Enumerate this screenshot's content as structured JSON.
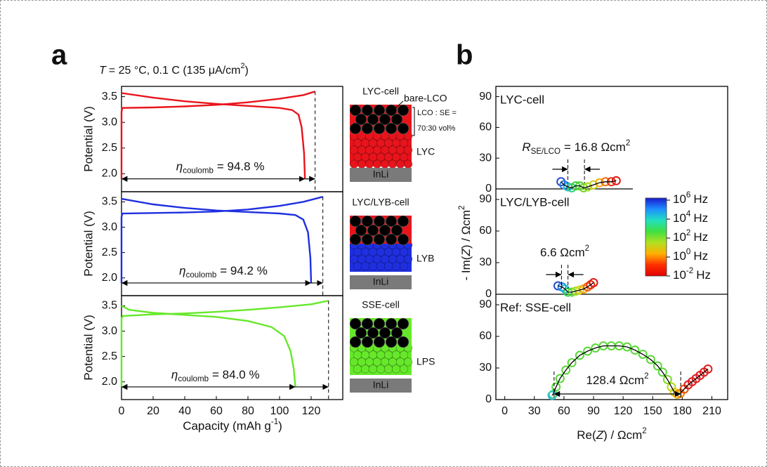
{
  "panel_a": {
    "letter": "a",
    "condition": {
      "symbol": "T",
      "text": "= 25 °C, 0.1 C (135 μA/cm",
      "sup": "2",
      "end": ")"
    },
    "x_label": {
      "text": "Capacity (mAh g",
      "sup": "-1",
      "end": ")"
    }
  },
  "cells": [
    {
      "name": "LYC-cell",
      "cathode_label": "bare-LCO",
      "ratio": [
        "LCO : SE =",
        "70:30 vol%"
      ],
      "layer": "LYC",
      "anode": "InLi"
    },
    {
      "name": "LYC/LYB-cell",
      "layer": "LYB",
      "anode": "InLi"
    },
    {
      "name": "SSE-cell",
      "layer": "LPS",
      "anode": "InLi"
    }
  ],
  "panel_b": {
    "letter": "b",
    "y_label": {
      "a": "- Im(",
      "z": "Z",
      "b": ") / Ωcm",
      "sup": "2"
    },
    "x_label": {
      "a": "Re(",
      "z": "Z",
      "b": ") / Ωcm",
      "sup": "2"
    }
  },
  "colorbar": {
    "colors": [
      "#1a1ad0",
      "#1e90ff",
      "#20e0c0",
      "#40e040",
      "#b0e020",
      "#ffb000",
      "#ff3000",
      "#e00000"
    ],
    "ticks": [
      {
        "base": "10",
        "exp": "6",
        "unit": "Hz"
      },
      {
        "base": "10",
        "exp": "4",
        "unit": "Hz"
      },
      {
        "base": "10",
        "exp": "2",
        "unit": "Hz"
      },
      {
        "base": "10",
        "exp": "0",
        "unit": "Hz"
      },
      {
        "base": "10",
        "exp": "-2",
        "unit": "Hz"
      }
    ]
  },
  "chart_data": [
    {
      "type": "line",
      "y_label": "Potential (V)",
      "series": [
        {
          "color": "#e8141c",
          "x": [
            0,
            0,
            0.5,
            20,
            40,
            60,
            80,
            100,
            115,
            122.5
          ],
          "values": [
            1.9,
            3.2,
            3.28,
            3.29,
            3.31,
            3.34,
            3.39,
            3.46,
            3.53,
            3.6
          ]
        },
        {
          "color": "#e8141c",
          "x": [
            0,
            20,
            40,
            60,
            80,
            100,
            108,
            112,
            114,
            115.5,
            116.1
          ],
          "values": [
            3.57,
            3.48,
            3.41,
            3.36,
            3.32,
            3.28,
            3.24,
            3.15,
            2.9,
            2.4,
            1.9
          ]
        }
      ],
      "xlim": [
        0,
        140
      ],
      "ylim": [
        1.65,
        3.7
      ],
      "yticks": [
        {
          "value": 2,
          "label": "2.0"
        },
        2.5,
        {
          "value": 3,
          "label": "3.0"
        },
        3.5
      ],
      "annotation": {
        "symbol": "η",
        "sub": "coulomb",
        "text": "= 94.8 %"
      }
    },
    {
      "type": "line",
      "y_label": "Potential (V)",
      "series": [
        {
          "color": "#1f2fe0",
          "x": [
            0,
            0,
            0.5,
            20,
            40,
            60,
            80,
            100,
            115,
            127.4
          ],
          "values": [
            1.9,
            3.2,
            3.27,
            3.28,
            3.29,
            3.31,
            3.35,
            3.42,
            3.5,
            3.6
          ]
        },
        {
          "color": "#1f2fe0",
          "x": [
            0,
            20,
            40,
            60,
            80,
            100,
            110,
            115,
            118,
            119.5,
            120
          ],
          "values": [
            3.56,
            3.45,
            3.38,
            3.33,
            3.3,
            3.27,
            3.24,
            3.15,
            2.9,
            2.4,
            1.9
          ]
        }
      ],
      "xlim": [
        0,
        140
      ],
      "ylim": [
        1.65,
        3.7
      ],
      "yticks": [
        {
          "value": 2,
          "label": "2.0"
        },
        2.5,
        {
          "value": 3,
          "label": "3.0"
        },
        3.5
      ],
      "annotation": {
        "symbol": "η",
        "sub": "coulomb",
        "text": "= 94.2 %"
      }
    },
    {
      "type": "line",
      "y_label": "Potential (V)",
      "series": [
        {
          "color": "#66e82a",
          "x": [
            0,
            0,
            1,
            20,
            40,
            60,
            80,
            100,
            120,
            131
          ],
          "values": [
            1.9,
            3.25,
            3.3,
            3.33,
            3.35,
            3.38,
            3.42,
            3.47,
            3.53,
            3.6
          ]
        },
        {
          "color": "#66e82a",
          "x": [
            0,
            5,
            20,
            40,
            60,
            80,
            95,
            103,
            107,
            109,
            110
          ],
          "values": [
            3.5,
            3.42,
            3.36,
            3.32,
            3.28,
            3.2,
            3.08,
            2.9,
            2.6,
            2.25,
            1.9
          ]
        }
      ],
      "xlim": [
        0,
        140
      ],
      "ylim": [
        1.65,
        3.7
      ],
      "xticks": [
        0,
        20,
        40,
        60,
        80,
        100,
        120
      ],
      "yticks": [
        {
          "value": 2,
          "label": "2.0"
        },
        2.5,
        {
          "value": 3,
          "label": "3.0"
        },
        3.5
      ],
      "annotation": {
        "symbol": "η",
        "sub": "coulomb",
        "text": "= 84.0 %"
      }
    },
    {
      "type": "scatter",
      "title": "LYC-cell",
      "title_color": "#e8141c",
      "series": [
        {
          "x": [
            57,
            60,
            64,
            68,
            72,
            76,
            80,
            84,
            90,
            96,
            102,
            108,
            113
          ],
          "values": [
            7,
            4,
            2,
            1,
            3,
            3,
            1,
            2,
            4,
            6,
            7,
            7,
            8
          ],
          "colors": [
            "#2a4bd0",
            "#2a7ee0",
            "#20b8d8",
            "#30d080",
            "#40d040",
            "#50d030",
            "#70d828",
            "#a0e020",
            "#d0d020",
            "#f0b010",
            "#f07010",
            "#e83010",
            "#e01818"
          ],
          "fit_color": "#000000"
        }
      ],
      "xlim": [
        -9,
        226
      ],
      "ylim": [
        0,
        100
      ],
      "yticks": [
        0,
        30,
        60,
        90
      ],
      "annotation": {
        "symbol": "R",
        "sub": "SE/LCO",
        "text": "= 16.8 Ωcm",
        "sup": "2",
        "marker_x": [
          64,
          80.8
        ]
      }
    },
    {
      "type": "scatter",
      "title": "LYC/LYB-cell",
      "title_color": "#1f2fe0",
      "series": [
        {
          "x": [
            54,
            58,
            61,
            64,
            68,
            72,
            76,
            80,
            84,
            87,
            90
          ],
          "values": [
            8,
            7,
            5,
            2,
            2,
            3,
            4,
            5,
            7,
            9,
            11
          ],
          "colors": [
            "#2a4bd0",
            "#2a80e0",
            "#20c0d0",
            "#30d060",
            "#60d830",
            "#a0e020",
            "#e0d010",
            "#f0a010",
            "#f06010",
            "#e83010",
            "#e01818"
          ],
          "fit_color": "#000000"
        }
      ],
      "xlim": [
        -9,
        226
      ],
      "ylim": [
        0,
        100
      ],
      "yticks": [
        0,
        30,
        60,
        90
      ],
      "annotation": {
        "text": "6.6 Ωcm",
        "sup": "2",
        "marker_x": [
          57.5,
          64.1
        ]
      }
    },
    {
      "type": "scatter",
      "title": "Ref: SSE-cell",
      "title_color": "#5ee01e",
      "series": [
        {
          "x": [
            48,
            49,
            52,
            56,
            62,
            68,
            76,
            84,
            92,
            100,
            108,
            116,
            124,
            132,
            140,
            148,
            155,
            160,
            165,
            169,
            172,
            175,
            178,
            182,
            186,
            190,
            194,
            198,
            202,
            206
          ],
          "values": [
            4,
            5,
            12,
            20,
            28,
            35,
            42,
            46,
            49,
            51,
            51,
            51,
            50,
            47,
            43,
            38,
            32,
            26,
            19,
            12,
            7,
            5,
            6,
            10,
            14,
            17,
            20,
            23,
            26,
            29
          ],
          "colors": [
            "#30b8d8",
            "#40d0a0",
            "#5ad83a",
            "#5ad83a",
            "#5ad83a",
            "#5ad83a",
            "#5ad83a",
            "#5ad83a",
            "#5ad83a",
            "#5ad83a",
            "#5ad83a",
            "#5ad83a",
            "#5ad83a",
            "#5ad83a",
            "#5ad83a",
            "#5ad83a",
            "#5ad83a",
            "#5ad83a",
            "#80d830",
            "#b0d820",
            "#e0d020",
            "#f0b010",
            "#f08010",
            "#f05010",
            "#e02020",
            "#e02020",
            "#e02020",
            "#e02020",
            "#e02020",
            "#e02020"
          ],
          "fit_color": "#000000"
        }
      ],
      "xlim": [
        -9,
        226
      ],
      "ylim": [
        0,
        100
      ],
      "xticks": [
        0,
        30,
        60,
        90,
        120,
        150,
        180,
        210
      ],
      "yticks": [
        0,
        30,
        60,
        90
      ],
      "annotation": {
        "text": "128.4 Ωcm",
        "sup": "2",
        "marker_x": [
          50,
          178.4
        ]
      }
    }
  ]
}
